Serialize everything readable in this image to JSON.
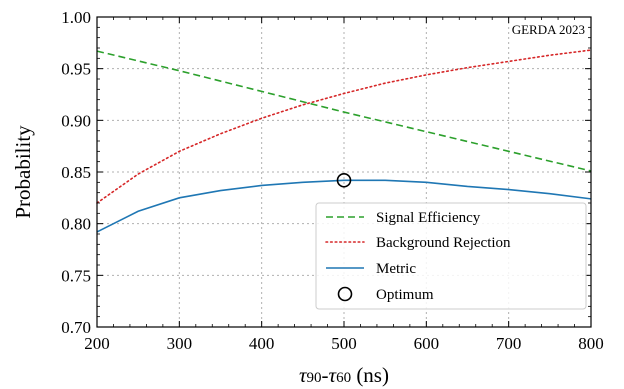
{
  "chart_data": {
    "type": "line",
    "xlabel_main_1": "τ",
    "xlabel_sub_1": "90",
    "xlabel_mid": "-",
    "xlabel_main_2": "τ",
    "xlabel_sub_2": "60",
    "xlabel_unit": " (ns)",
    "ylabel": "Probability",
    "annotation": "GERDA 2023",
    "xlim": [
      200,
      800
    ],
    "ylim": [
      0.7,
      1.0
    ],
    "xticks": [
      200,
      300,
      400,
      500,
      600,
      700,
      800
    ],
    "yticks": [
      0.7,
      0.75,
      0.8,
      0.85,
      0.9,
      0.95,
      1.0
    ],
    "grid": true,
    "legend_position": "lower-right",
    "series": [
      {
        "name": "Signal Efficiency",
        "style": "dashed",
        "color": "#2ca02c",
        "x": [
          200,
          300,
          400,
          500,
          600,
          700,
          800
        ],
        "y": [
          0.967,
          0.948,
          0.928,
          0.908,
          0.889,
          0.87,
          0.851
        ]
      },
      {
        "name": "Background Rejection",
        "style": "dotted",
        "color": "#d62728",
        "x": [
          200,
          250,
          300,
          350,
          400,
          450,
          500,
          550,
          600,
          650,
          700,
          750,
          800
        ],
        "y": [
          0.82,
          0.848,
          0.87,
          0.887,
          0.902,
          0.915,
          0.926,
          0.936,
          0.944,
          0.951,
          0.957,
          0.963,
          0.968
        ]
      },
      {
        "name": "Metric",
        "style": "solid",
        "color": "#1f77b4",
        "x": [
          200,
          250,
          300,
          350,
          400,
          450,
          500,
          550,
          600,
          650,
          700,
          750,
          800
        ],
        "y": [
          0.792,
          0.812,
          0.825,
          0.832,
          0.837,
          0.84,
          0.842,
          0.842,
          0.84,
          0.836,
          0.833,
          0.829,
          0.824
        ]
      }
    ],
    "optimum": {
      "name": "Optimum",
      "x": 500,
      "y": 0.842
    }
  }
}
